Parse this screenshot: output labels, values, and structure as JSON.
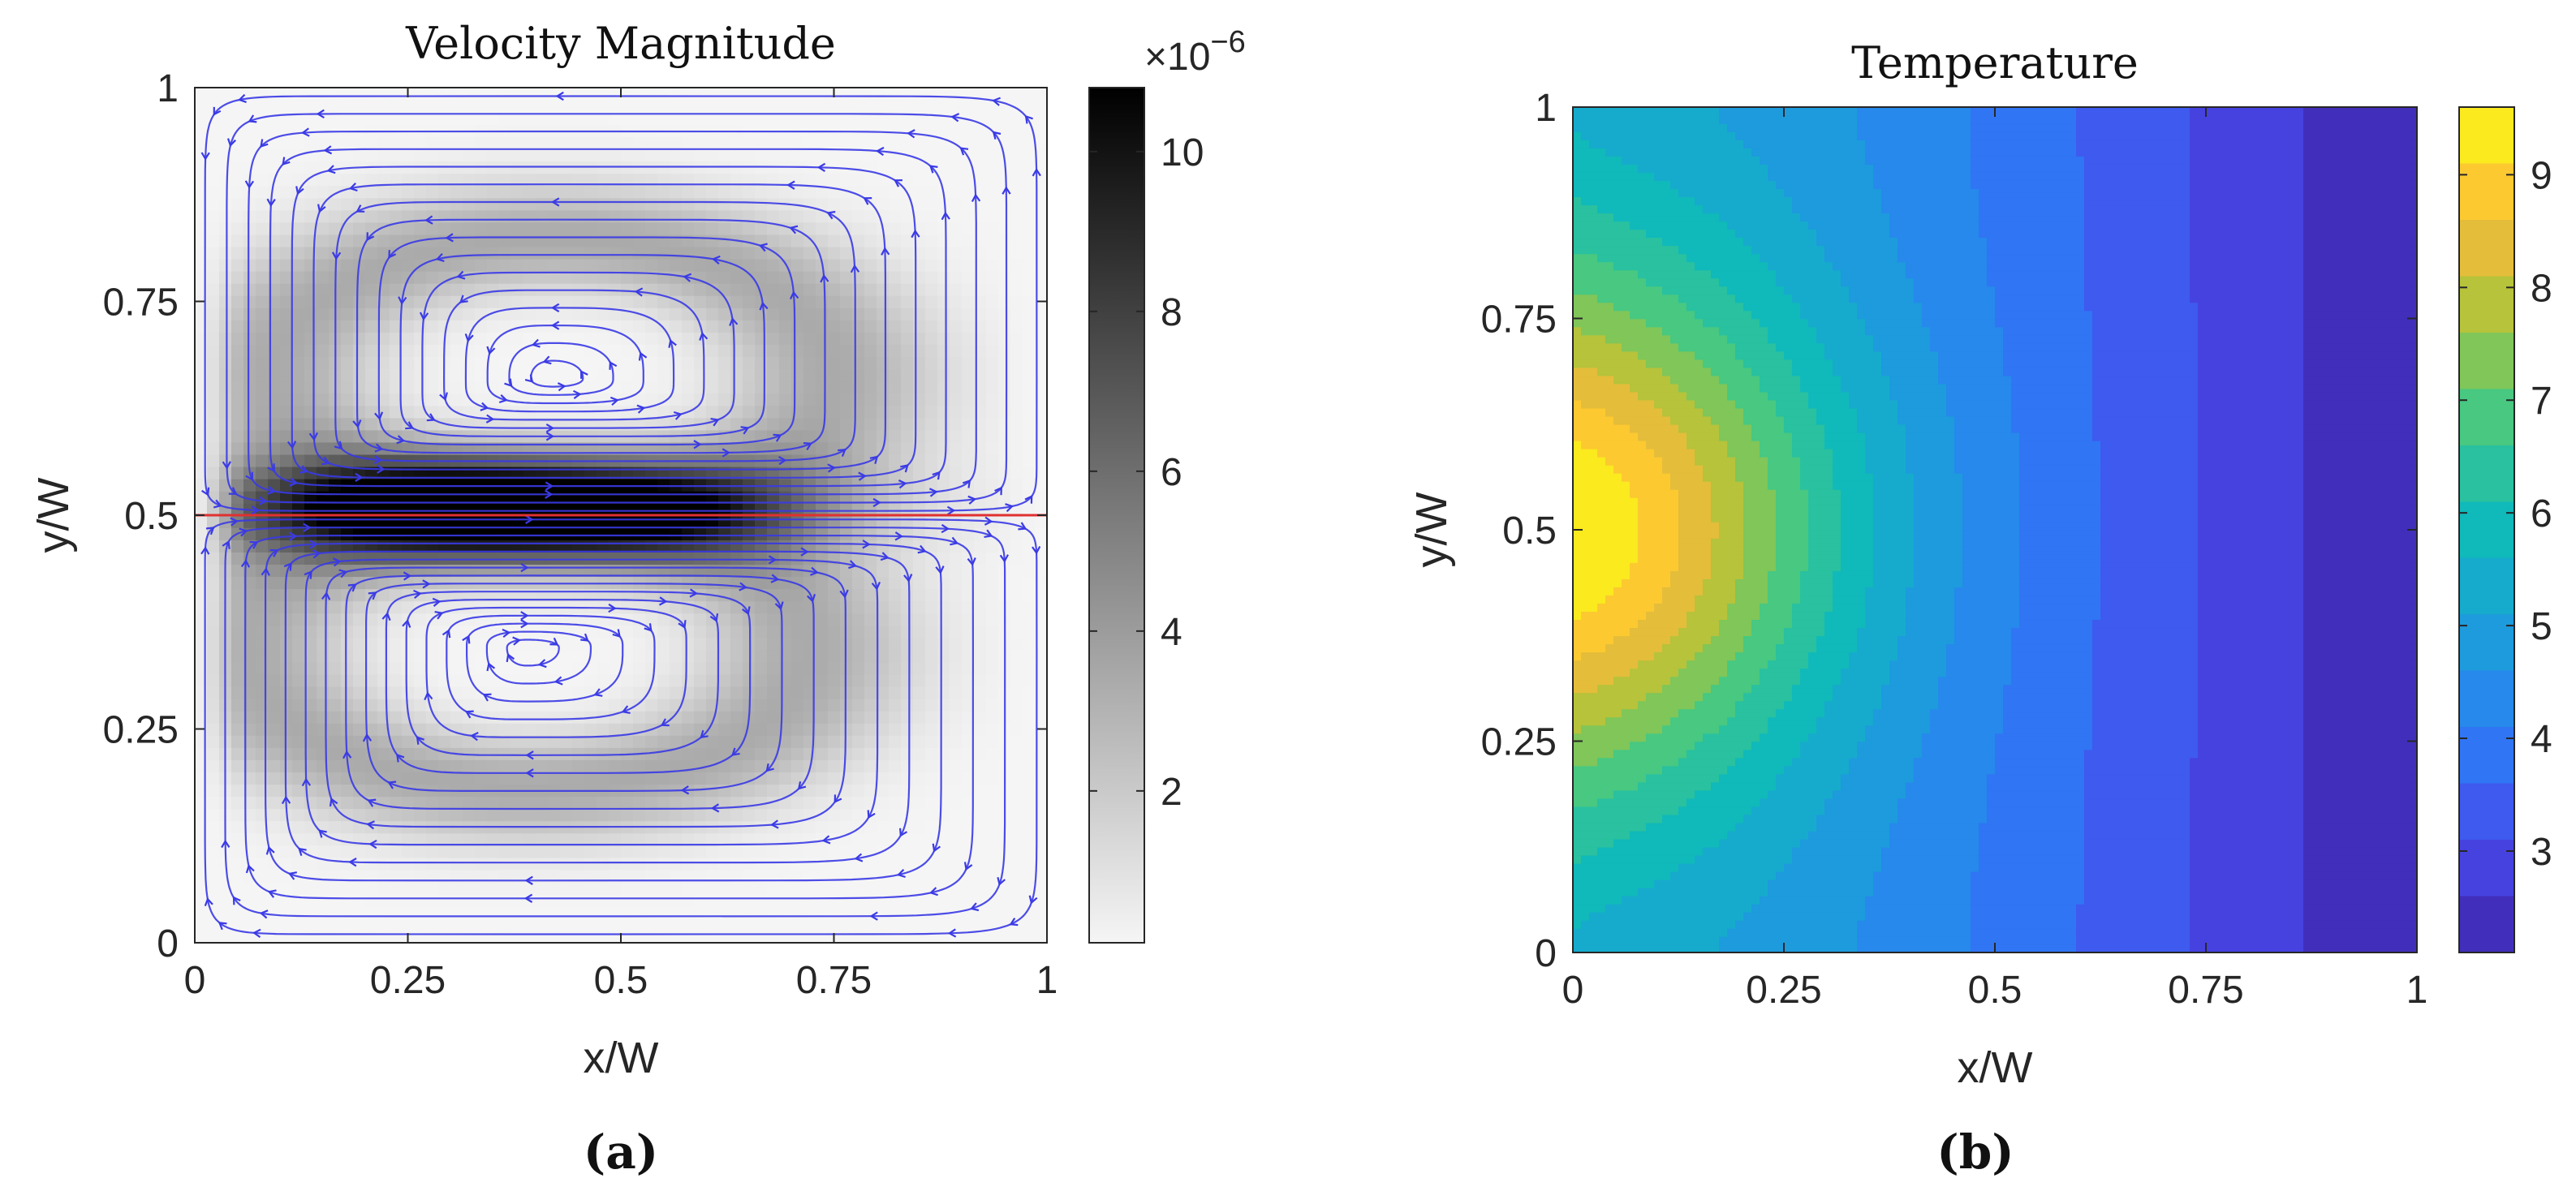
{
  "chart_data": [
    {
      "type": "heatmap",
      "title": "Velocity Magnitude",
      "panel_label": "(a)",
      "xlabel": "x/W",
      "ylabel": "y/W",
      "xlim": [
        0,
        1
      ],
      "ylim": [
        0,
        1
      ],
      "x_ticks": [
        0,
        0.25,
        0.5,
        0.75,
        1
      ],
      "x_tick_labels": [
        "0",
        "0.25",
        "0.5",
        "0.75",
        "1"
      ],
      "y_ticks": [
        0,
        0.25,
        0.5,
        0.75,
        1
      ],
      "y_tick_labels": [
        "0",
        "0.25",
        "0.5",
        "0.75",
        "1"
      ],
      "colormap": "gray-reversed",
      "colorbar": {
        "exponent_label": "×10",
        "exponent_power": "−6",
        "range": [
          0.1,
          10.8
        ],
        "ticks": [
          2,
          4,
          6,
          8,
          10
        ],
        "tick_labels": [
          "2",
          "4",
          "6",
          "8",
          "10"
        ]
      },
      "overlay": {
        "streamline_color": "#3a3ae6",
        "vortices": [
          {
            "center": [
              0.42,
              0.66
            ],
            "rotation": "counter-clockwise"
          },
          {
            "center": [
              0.39,
              0.345
            ],
            "rotation": "clockwise"
          }
        ],
        "interface_line": {
          "y": 0.5,
          "color": "#e03030"
        }
      },
      "max_region": {
        "x": 0.35,
        "y": 0.51
      }
    },
    {
      "type": "heatmap",
      "title": "Temperature",
      "panel_label": "(b)",
      "xlabel": "x/W",
      "ylabel": "y/W",
      "xlim": [
        0,
        1
      ],
      "ylim": [
        0,
        1
      ],
      "x_ticks": [
        0,
        0.25,
        0.5,
        0.75,
        1
      ],
      "x_tick_labels": [
        "0",
        "0.25",
        "0.5",
        "0.75",
        "1"
      ],
      "y_ticks": [
        0,
        0.25,
        0.5,
        0.75,
        1
      ],
      "y_tick_labels": [
        "0",
        "0.25",
        "0.5",
        "0.75",
        "1"
      ],
      "colormap": "parula",
      "contour_levels": 15,
      "colorbar": {
        "range": [
          2.1,
          9.6
        ],
        "ticks": [
          3,
          4,
          5,
          6,
          7,
          8,
          9
        ],
        "tick_labels": [
          "3",
          "4",
          "5",
          "6",
          "7",
          "8",
          "9"
        ]
      },
      "hot_spot": {
        "x": 0,
        "y": 0.5,
        "value": 9.6
      },
      "cold_edge": {
        "x": 1,
        "value": 2.1
      }
    }
  ]
}
